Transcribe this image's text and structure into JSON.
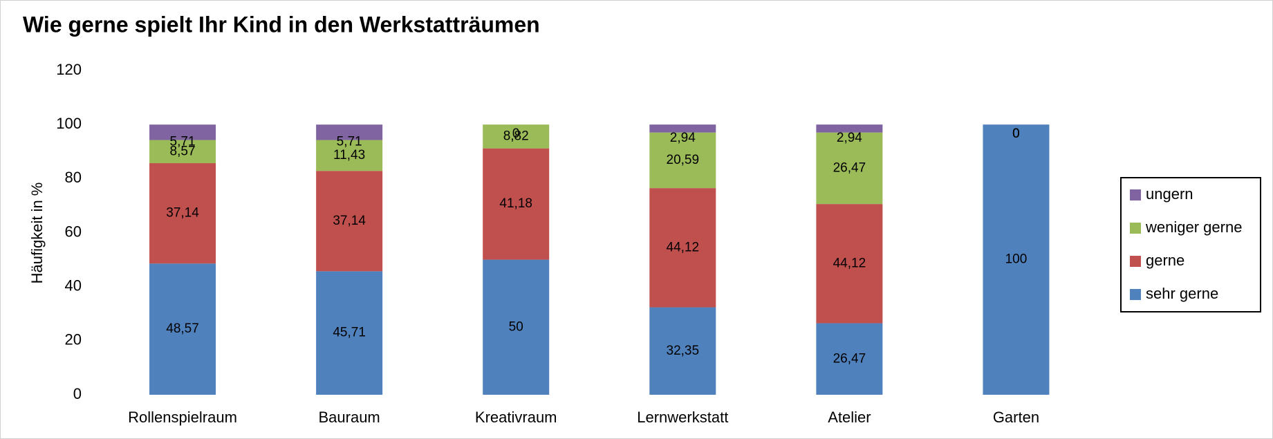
{
  "chart_data": {
    "type": "stacked_bar",
    "title": "Wie gerne spielt Ihr Kind in den Werkstatträumen",
    "y_label": "Häufigkeit in %",
    "categories": [
      "Rollenspielraum",
      "Bauraum",
      "Kreativraum",
      "Lernwerkstatt",
      "Atelier",
      "Garten"
    ],
    "series": [
      {
        "name": "sehr gerne",
        "color": "#4f81bd",
        "values": [
          48.57,
          45.71,
          50,
          32.35,
          26.47,
          100
        ],
        "value_labels": [
          "48,57",
          "45,71",
          "50",
          "32,35",
          "26,47",
          "100"
        ]
      },
      {
        "name": "gerne",
        "color": "#c0504d",
        "values": [
          37.14,
          37.14,
          41.18,
          44.12,
          44.12,
          0
        ],
        "value_labels": [
          "37,14",
          "37,14",
          "41,18",
          "44,12",
          "44,12",
          "0"
        ]
      },
      {
        "name": "weniger gerne",
        "color": "#9bbb59",
        "values": [
          8.57,
          11.43,
          8.82,
          20.59,
          26.47,
          0
        ],
        "value_labels": [
          "8,57",
          "11,43",
          "8,82",
          "20,59",
          "26,47",
          "0"
        ]
      },
      {
        "name": "ungern",
        "color": "#8064a2",
        "values": [
          5.71,
          5.71,
          0,
          2.94,
          2.94,
          0
        ],
        "value_labels": [
          "5,71",
          "5,71",
          "0",
          "2,94",
          "2,94",
          "0"
        ]
      }
    ],
    "ylim": [
      0,
      120
    ],
    "yticks": [
      0,
      20,
      40,
      60,
      80,
      100,
      120
    ],
    "grid": false,
    "legend": "right"
  }
}
